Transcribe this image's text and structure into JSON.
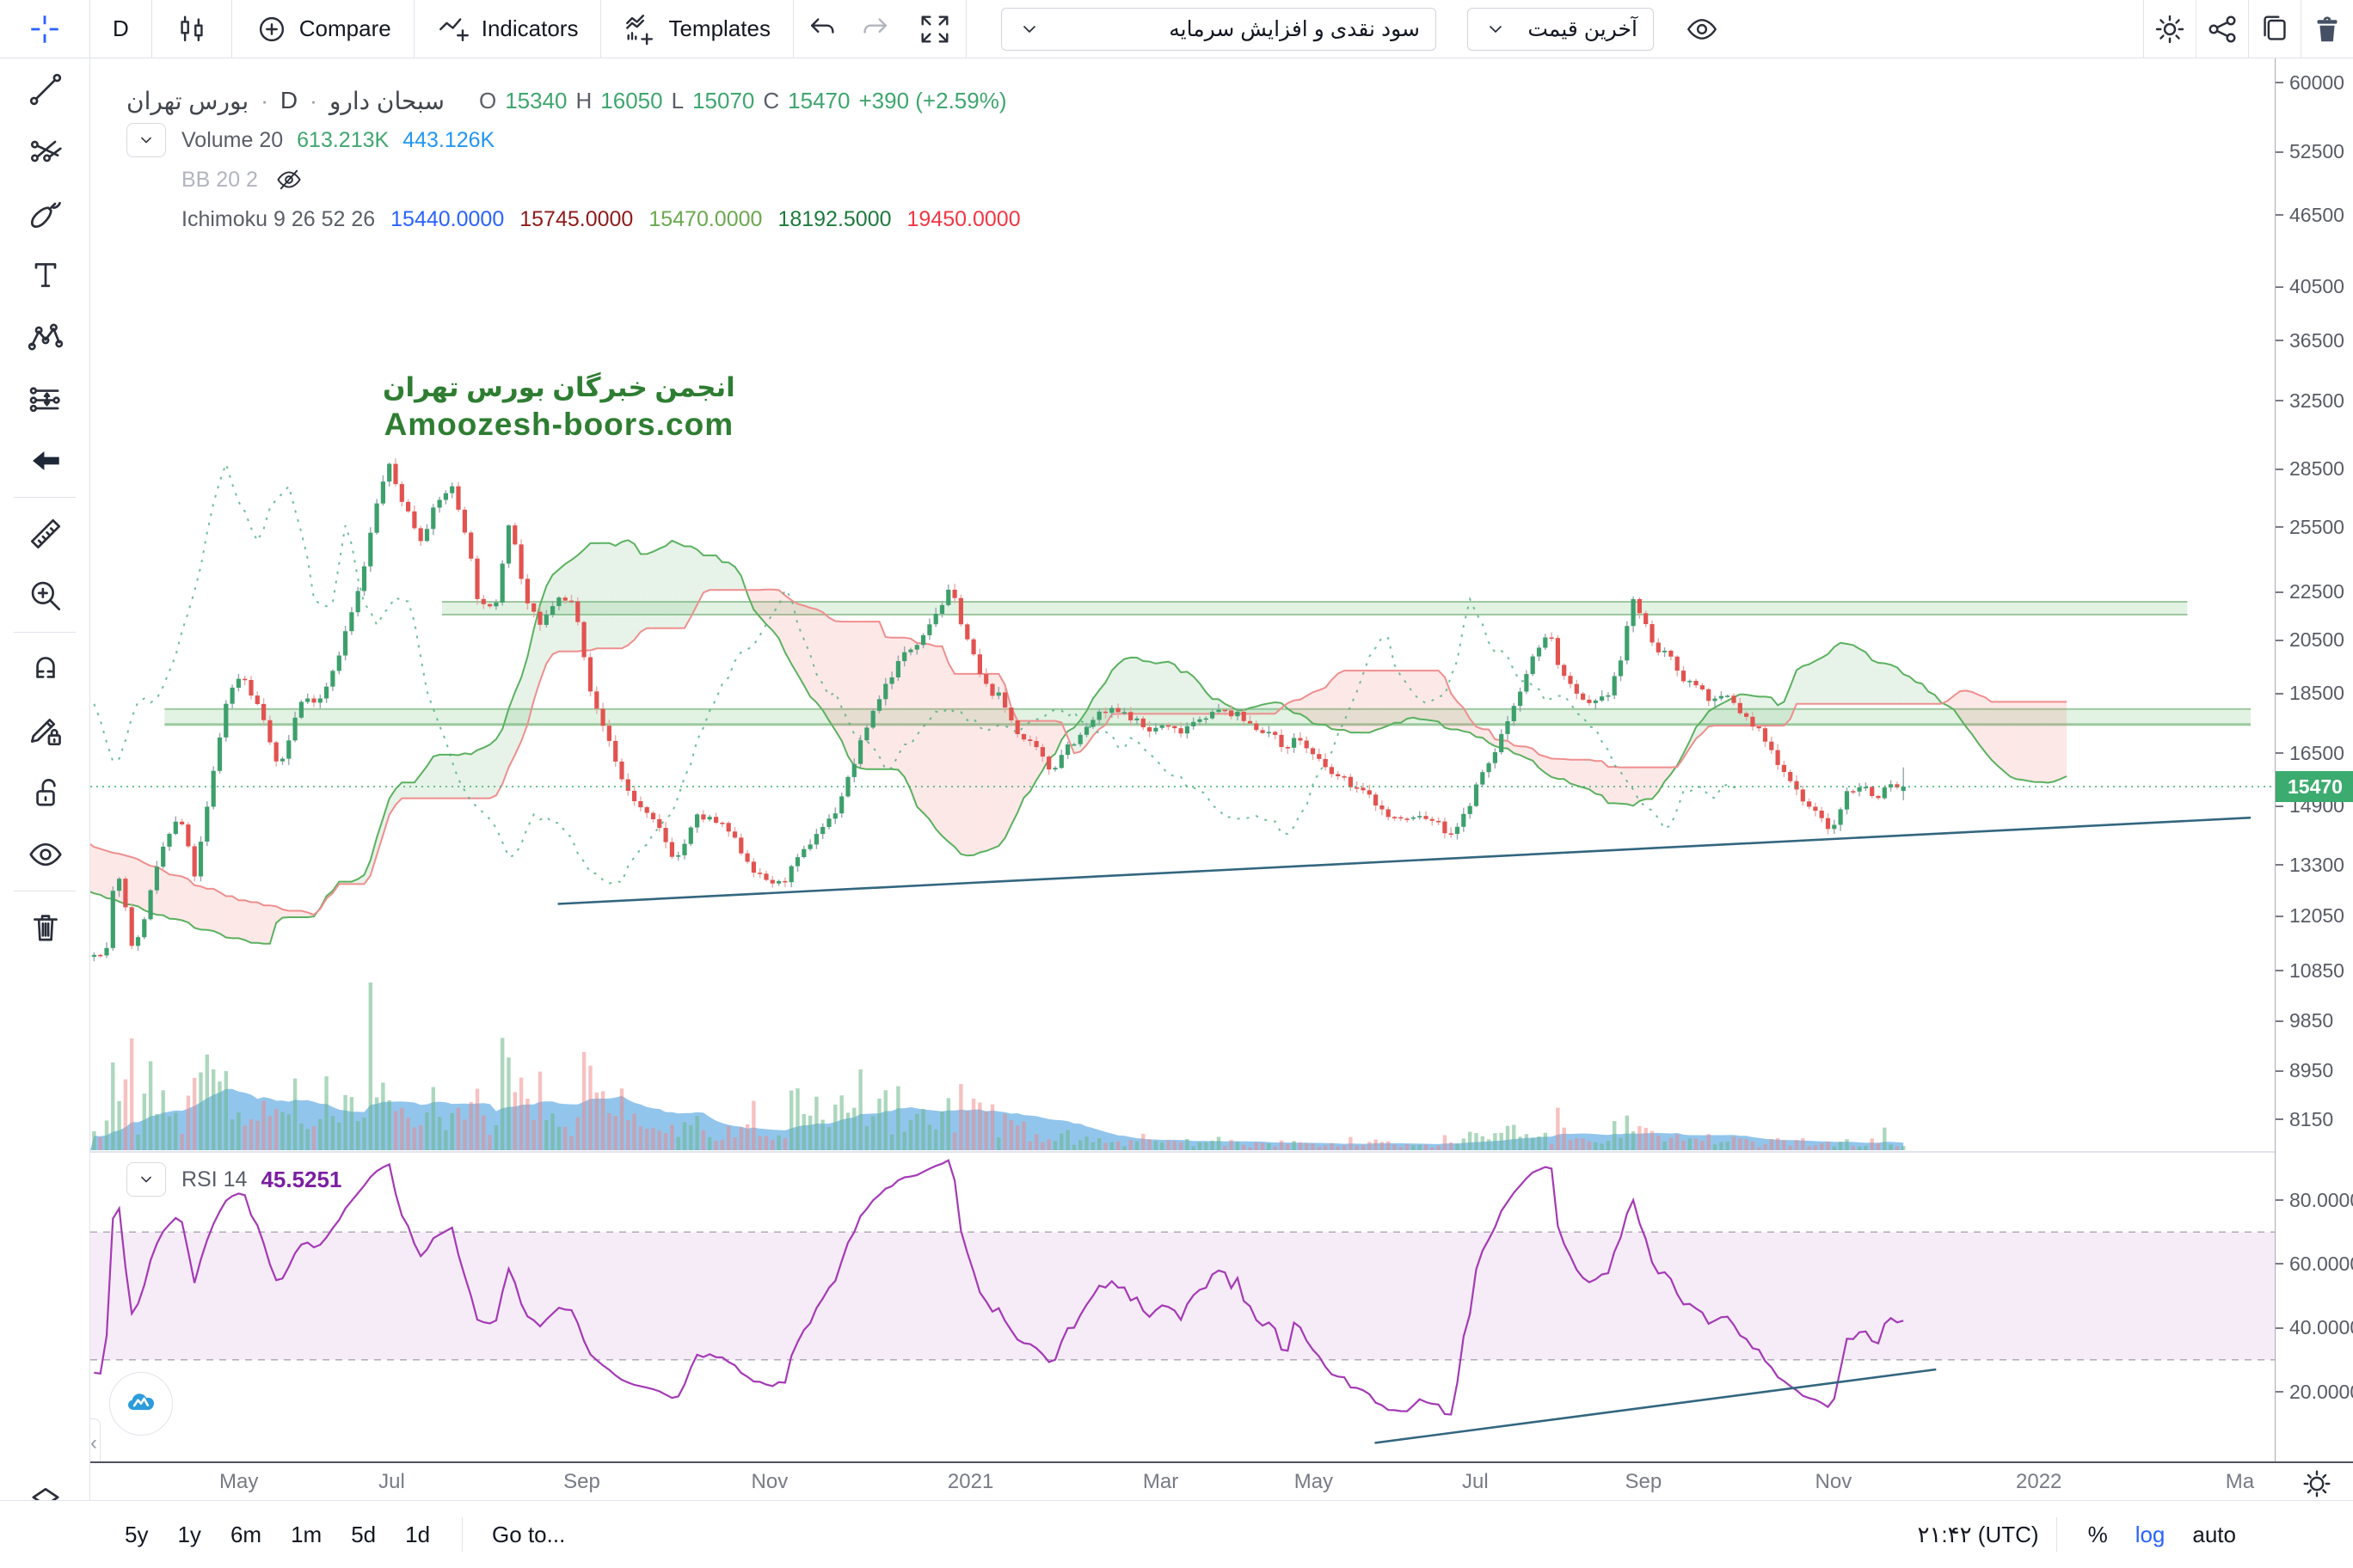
{
  "topbar": {
    "interval": "D",
    "compare_label": "Compare",
    "indicators_label": "Indicators",
    "templates_label": "Templates",
    "dropdown_adjust": "سود نقدی و افزایش سرمایه",
    "dropdown_price": "آخرین قیمت"
  },
  "legend": {
    "market": "بورس تهران",
    "interval": "D",
    "symbol": "سبحان دارو",
    "dot": "·",
    "ohlc": {
      "o_label": "O",
      "o": "15340",
      "h_label": "H",
      "h": "16050",
      "l_label": "L",
      "l": "15070",
      "c_label": "C",
      "c": "15470",
      "change": "+390 (+2.59%)"
    },
    "volume": {
      "label": "Volume 20",
      "value": "613.213K",
      "ma_value": "443.126K",
      "value_color": "#3fa66f",
      "ma_color": "#2196f3"
    },
    "bb": {
      "label": "BB 20 2",
      "hidden": true
    },
    "ichimoku": {
      "label": "Ichimoku 9 26 52 26",
      "values": [
        {
          "text": "15440.0000",
          "color": "#2962ff"
        },
        {
          "text": "15745.0000",
          "color": "#8e1b1b"
        },
        {
          "text": "15470.0000",
          "color": "#6aa84f"
        },
        {
          "text": "18192.5000",
          "color": "#1c7a3c"
        },
        {
          "text": "19450.0000",
          "color": "#f23645"
        }
      ]
    }
  },
  "watermark": {
    "line1": "انجمن خبرگان بورس تهران",
    "line2": "Amoozesh-boors.com"
  },
  "rsi_pane": {
    "label": "RSI 14",
    "value": "45.5251",
    "axis_ticks": [
      "80.0000",
      "60.0000",
      "40.0000",
      "20.0000"
    ],
    "axis_values": [
      80,
      60,
      40,
      20
    ],
    "upper_level": 70,
    "lower_level": 30,
    "trendline": {
      "f1": 0.588,
      "v1": 4,
      "f2": 0.845,
      "v2": 27
    }
  },
  "price_axis": {
    "last_price": "15470",
    "last_price_color": "#3cab6f"
  },
  "time_axis": {
    "ticks": [
      {
        "label": "May",
        "f": 0.068
      },
      {
        "label": "Jul",
        "f": 0.138
      },
      {
        "label": "Sep",
        "f": 0.225
      },
      {
        "label": "Nov",
        "f": 0.311
      },
      {
        "label": "2021",
        "f": 0.403
      },
      {
        "label": "Mar",
        "f": 0.49
      },
      {
        "label": "May",
        "f": 0.56
      },
      {
        "label": "Jul",
        "f": 0.634
      },
      {
        "label": "Sep",
        "f": 0.711
      },
      {
        "label": "Nov",
        "f": 0.798
      },
      {
        "label": "2022",
        "f": 0.892
      },
      {
        "label": "Ma",
        "f": 0.984
      }
    ]
  },
  "bottom_bar": {
    "ranges": [
      "5y",
      "1y",
      "6m",
      "1m",
      "5d",
      "1d"
    ],
    "goto": "Go to...",
    "clock": "۲۱:۴۲ (UTC)",
    "percent": "%",
    "log": "log",
    "auto": "auto",
    "log_color": "#2962ff"
  },
  "chart_data": {
    "type": "candlestick",
    "symbol": "سبحان دارو",
    "exchange": "بورس تهران",
    "interval": "D",
    "scale_type": "log",
    "last": {
      "open": 15340,
      "high": 16050,
      "low": 15070,
      "close": 15470,
      "change": 390,
      "change_pct": 2.59
    },
    "y_log_ticks": [
      60000,
      52500,
      46500,
      40500,
      36500,
      32500,
      28500,
      25500,
      22500,
      20500,
      18500,
      16500,
      14900,
      13300,
      12050,
      10850,
      9850,
      8950,
      8150
    ],
    "bar_count": 380,
    "bar_range": [
      -0.26,
      0.83
    ],
    "price_path": [
      [
        -0.26,
        16200
      ],
      [
        -0.21,
        15200
      ],
      [
        -0.16,
        13800
      ],
      [
        -0.11,
        12800
      ],
      [
        -0.06,
        11900
      ],
      [
        -0.02,
        11300
      ],
      [
        0.007,
        11100
      ],
      [
        0.012,
        13400
      ],
      [
        0.02,
        11200
      ],
      [
        0.034,
        13900
      ],
      [
        0.041,
        14600
      ],
      [
        0.048,
        13000
      ],
      [
        0.062,
        18200
      ],
      [
        0.069,
        19300
      ],
      [
        0.079,
        17700
      ],
      [
        0.086,
        15900
      ],
      [
        0.096,
        18200
      ],
      [
        0.106,
        18400
      ],
      [
        0.113,
        19800
      ],
      [
        0.124,
        22900
      ],
      [
        0.13,
        26100
      ],
      [
        0.136,
        28900
      ],
      [
        0.141,
        27300
      ],
      [
        0.146,
        26100
      ],
      [
        0.151,
        24900
      ],
      [
        0.158,
        26500
      ],
      [
        0.165,
        27700
      ],
      [
        0.172,
        25200
      ],
      [
        0.178,
        21900
      ],
      [
        0.185,
        21700
      ],
      [
        0.192,
        26100
      ],
      [
        0.199,
        22200
      ],
      [
        0.206,
        21000
      ],
      [
        0.213,
        22200
      ],
      [
        0.222,
        22000
      ],
      [
        0.23,
        18200
      ],
      [
        0.237,
        17000
      ],
      [
        0.244,
        15550
      ],
      [
        0.251,
        14900
      ],
      [
        0.261,
        14200
      ],
      [
        0.268,
        13400
      ],
      [
        0.278,
        14600
      ],
      [
        0.285,
        14500
      ],
      [
        0.292,
        14200
      ],
      [
        0.299,
        13580
      ],
      [
        0.306,
        13000
      ],
      [
        0.316,
        12800
      ],
      [
        0.326,
        13580
      ],
      [
        0.333,
        14200
      ],
      [
        0.34,
        14600
      ],
      [
        0.347,
        15700
      ],
      [
        0.357,
        17700
      ],
      [
        0.364,
        18800
      ],
      [
        0.371,
        19800
      ],
      [
        0.378,
        20400
      ],
      [
        0.394,
        22600
      ],
      [
        0.402,
        20400
      ],
      [
        0.409,
        18800
      ],
      [
        0.416,
        18400
      ],
      [
        0.426,
        17000
      ],
      [
        0.433,
        16600
      ],
      [
        0.44,
        15900
      ],
      [
        0.446,
        16700
      ],
      [
        0.453,
        17000
      ],
      [
        0.46,
        17700
      ],
      [
        0.467,
        17900
      ],
      [
        0.477,
        17700
      ],
      [
        0.484,
        17200
      ],
      [
        0.491,
        17400
      ],
      [
        0.498,
        17200
      ],
      [
        0.508,
        17700
      ],
      [
        0.519,
        17900
      ],
      [
        0.526,
        17700
      ],
      [
        0.532,
        17400
      ],
      [
        0.539,
        17200
      ],
      [
        0.546,
        16700
      ],
      [
        0.553,
        17000
      ],
      [
        0.56,
        16400
      ],
      [
        0.567,
        15900
      ],
      [
        0.577,
        15550
      ],
      [
        0.587,
        15100
      ],
      [
        0.594,
        14600
      ],
      [
        0.601,
        14500
      ],
      [
        0.608,
        14600
      ],
      [
        0.615,
        14500
      ],
      [
        0.622,
        14100
      ],
      [
        0.629,
        14600
      ],
      [
        0.635,
        15550
      ],
      [
        0.642,
        16400
      ],
      [
        0.649,
        17600
      ],
      [
        0.656,
        19000
      ],
      [
        0.663,
        20300
      ],
      [
        0.668,
        20800
      ],
      [
        0.673,
        19300
      ],
      [
        0.68,
        18400
      ],
      [
        0.687,
        18000
      ],
      [
        0.694,
        18400
      ],
      [
        0.701,
        19800
      ],
      [
        0.706,
        22300
      ],
      [
        0.712,
        21000
      ],
      [
        0.718,
        20100
      ],
      [
        0.723,
        19800
      ],
      [
        0.73,
        19000
      ],
      [
        0.736,
        18800
      ],
      [
        0.743,
        18200
      ],
      [
        0.75,
        18400
      ],
      [
        0.757,
        17700
      ],
      [
        0.764,
        17200
      ],
      [
        0.771,
        16400
      ],
      [
        0.778,
        15700
      ],
      [
        0.784,
        15100
      ],
      [
        0.791,
        14600
      ],
      [
        0.798,
        14200
      ],
      [
        0.804,
        15300
      ],
      [
        0.811,
        15550
      ],
      [
        0.817,
        15100
      ],
      [
        0.823,
        15550
      ],
      [
        0.83,
        15470
      ]
    ],
    "indicators": {
      "ichimoku": {
        "conversion": 9,
        "base": 26,
        "lagging": 52,
        "displacement": 26
      },
      "volume_ma": 20,
      "rsi": 14,
      "bb": {
        "length": 20,
        "mult": 2,
        "hidden": true
      }
    },
    "drawings": {
      "zones": [
        {
          "p1": 21540,
          "p2": 22080,
          "f1": 0.161,
          "f2": 0.96
        },
        {
          "p1": 17430,
          "p2": 17960,
          "f1": 0.034,
          "f2": 0.989
        }
      ],
      "trendline": {
        "f1": 0.214,
        "p1": 12340,
        "f2": 0.989,
        "p2": 14570
      },
      "price_line": 15470
    },
    "colors": {
      "up": "#3da06c",
      "down": "#e25350",
      "wick_up": "#94a6ae",
      "wick_down": "#e8a8a8",
      "cloud_up": "rgba(103,183,119,0.16)",
      "cloud_down": "rgba(244,112,112,0.16)",
      "lead_a": "#5bb15f",
      "lead_b": "#ef8e8e",
      "chikou": "#4caf7f",
      "vol_up": "rgba(103,183,135,0.55)",
      "vol_down": "rgba(239,131,131,0.5)",
      "vol_ma": "rgba(134,191,234,0.9)",
      "zone_fill": "rgba(76,175,80,0.16)",
      "zone_edge": "rgba(56,142,60,0.45)",
      "trendline": "#33667f",
      "price_line": "#3cab6f",
      "rsi_line": "#a43ab5",
      "rsi_band": "rgba(171,71,188,0.10)",
      "rsi_dash": "rgba(120,123,134,0.55)"
    }
  }
}
